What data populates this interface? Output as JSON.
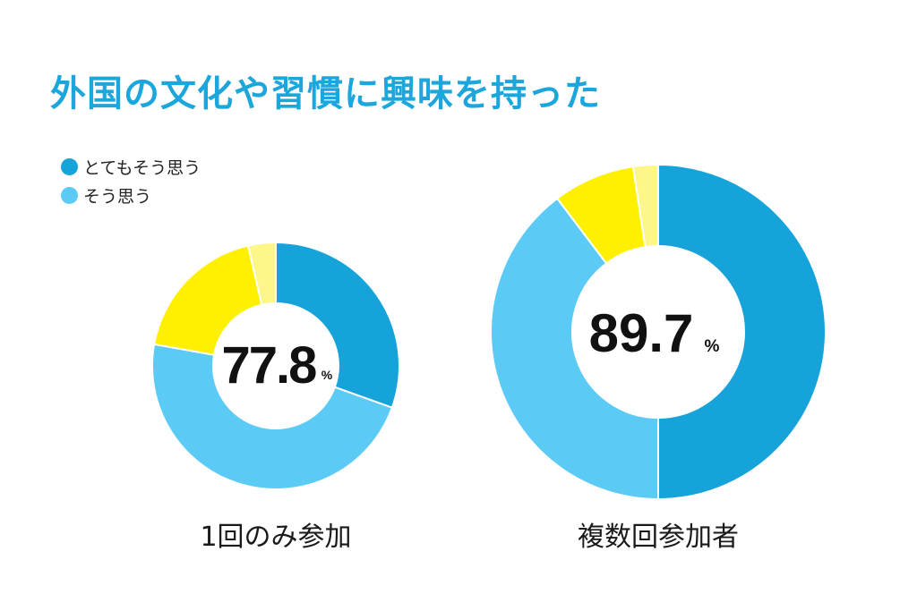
{
  "title": "外国の文化や習慣に興味を持った",
  "legend": [
    {
      "label": "とてもそう思う",
      "color": "#16a3da"
    },
    {
      "label": "そう思う",
      "color": "#5bcbf5"
    }
  ],
  "chart_data": [
    {
      "type": "pie",
      "variant": "donut",
      "caption": "1回のみ参加",
      "center_value": "77.8",
      "center_unit": "%",
      "slices": [
        {
          "label": "とてもそう思う",
          "value": 30.5,
          "color": "#16a3da"
        },
        {
          "label": "そう思う",
          "value": 47.3,
          "color": "#5bcbf5"
        },
        {
          "label": "",
          "value": 18.6,
          "color": "#fff000"
        },
        {
          "label": "",
          "value": 3.6,
          "color": "#fff68a"
        }
      ]
    },
    {
      "type": "pie",
      "variant": "donut",
      "caption": "複数回参加者",
      "center_value": "89.7",
      "center_unit": "%",
      "slices": [
        {
          "label": "とてもそう思う",
          "value": 50.0,
          "color": "#16a3da"
        },
        {
          "label": "そう思う",
          "value": 39.7,
          "color": "#5bcbf5"
        },
        {
          "label": "",
          "value": 7.9,
          "color": "#fff000"
        },
        {
          "label": "",
          "value": 2.4,
          "color": "#fff68a"
        }
      ]
    }
  ]
}
